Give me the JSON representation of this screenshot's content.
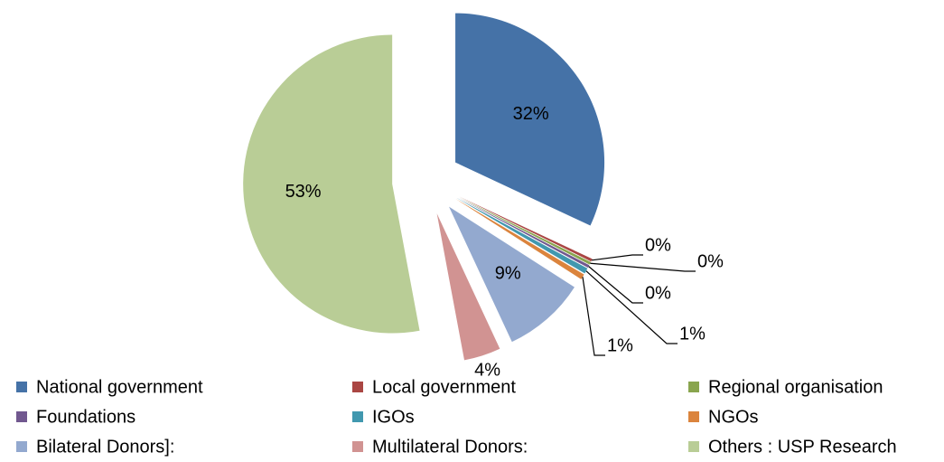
{
  "chart_data": {
    "type": "pie",
    "categories": [
      "National government",
      "Local government",
      "Regional organisation",
      "Foundations",
      "IGOs",
      "NGOs",
      "Bilateral Donors]:",
      "Multilateral Donors:",
      "Others :   USP Research"
    ],
    "values": [
      32,
      0.3,
      0.3,
      0.3,
      0.6,
      0.6,
      9,
      4,
      53
    ],
    "value_labels": [
      "32%",
      "0%",
      "0%",
      "0%",
      "1%",
      "1%",
      "9%",
      "4%",
      "53%"
    ],
    "colors": [
      "#4572a7",
      "#aa4643",
      "#89a54e",
      "#71588f",
      "#4198af",
      "#db843d",
      "#93a9cf",
      "#d19392",
      "#b9cd96"
    ],
    "exploded": true,
    "legend": "bottom"
  }
}
